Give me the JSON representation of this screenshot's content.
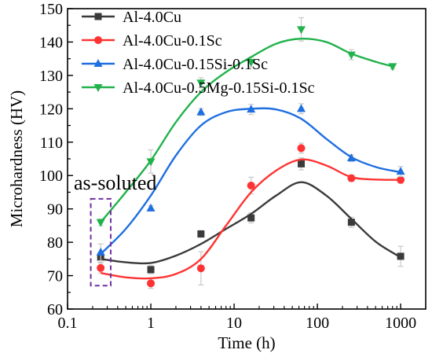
{
  "chart_data": {
    "type": "scatter",
    "xlabel": "Time (h)",
    "ylabel": "Microhardness (HV)",
    "xscale": "log",
    "xlim": [
      0.1,
      2000
    ],
    "ylim": [
      60,
      150
    ],
    "xticks": [
      0.1,
      1,
      10,
      100,
      1000
    ],
    "xtick_labels": [
      "0.1",
      "1",
      "10",
      "100",
      "1000"
    ],
    "yticks": [
      60,
      70,
      80,
      90,
      100,
      110,
      120,
      130,
      140,
      150
    ],
    "ytick_labels": [
      "60",
      "70",
      "80",
      "90",
      "100",
      "110",
      "120",
      "130",
      "140",
      "150"
    ],
    "legend_position": "top-left",
    "grid": false,
    "annotation": {
      "text": "as-soluted",
      "box_x": [
        0.19,
        0.33
      ],
      "box_y": [
        67,
        93
      ],
      "box_color": "#7030a0"
    },
    "series": [
      {
        "name": "Al-4.0Cu",
        "color": "#3a3a3a",
        "marker": "square",
        "points": [
          {
            "x": 0.25,
            "y": 75.5,
            "err": 1.5
          },
          {
            "x": 1,
            "y": 71.8,
            "err": 1.2
          },
          {
            "x": 4,
            "y": 82.5,
            "err": 1.0
          },
          {
            "x": 16,
            "y": 87.3,
            "err": 1.5
          },
          {
            "x": 64,
            "y": 103.5,
            "err": 1.8
          },
          {
            "x": 256,
            "y": 86.0,
            "err": 1.5
          },
          {
            "x": 1000,
            "y": 75.8,
            "err": 3.0
          }
        ],
        "fit": [
          [
            0.25,
            75
          ],
          [
            0.5,
            74
          ],
          [
            1,
            73.8
          ],
          [
            2,
            76
          ],
          [
            4,
            79.5
          ],
          [
            8,
            84
          ],
          [
            16,
            88.5
          ],
          [
            32,
            94
          ],
          [
            64,
            98
          ],
          [
            128,
            94
          ],
          [
            256,
            87
          ],
          [
            512,
            80
          ],
          [
            1000,
            75.5
          ]
        ]
      },
      {
        "name": "Al-4.0Cu-0.1Sc",
        "color": "#ff3333",
        "marker": "circle",
        "points": [
          {
            "x": 0.25,
            "y": 72.3,
            "err": 1.5
          },
          {
            "x": 1,
            "y": 67.7,
            "err": 1.5
          },
          {
            "x": 4,
            "y": 72.2,
            "err": 5.0
          },
          {
            "x": 16,
            "y": 97.0,
            "err": 2.5
          },
          {
            "x": 64,
            "y": 108.2,
            "err": 1.5
          },
          {
            "x": 256,
            "y": 99.2,
            "err": 1.0
          },
          {
            "x": 1000,
            "y": 98.7,
            "err": 1.0
          }
        ],
        "fit": [
          [
            0.25,
            70.8
          ],
          [
            0.5,
            69.5
          ],
          [
            1,
            69.2
          ],
          [
            2,
            70.5
          ],
          [
            4,
            75
          ],
          [
            8,
            85
          ],
          [
            16,
            95
          ],
          [
            32,
            101.5
          ],
          [
            64,
            104.8
          ],
          [
            128,
            103
          ],
          [
            256,
            99.5
          ],
          [
            512,
            98.8
          ],
          [
            1000,
            98.7
          ]
        ]
      },
      {
        "name": "Al-4.0Cu-0.15Si-0.1Sc",
        "color": "#1f6fe0",
        "marker": "triangle-up",
        "points": [
          {
            "x": 0.25,
            "y": 77.0,
            "err": 2.5
          },
          {
            "x": 1,
            "y": 90.2,
            "err": 0.8
          },
          {
            "x": 4,
            "y": 119.0,
            "err": 1.0
          },
          {
            "x": 16,
            "y": 119.8,
            "err": 1.5
          },
          {
            "x": 64,
            "y": 120.0,
            "err": 1.5
          },
          {
            "x": 256,
            "y": 105.2,
            "err": 1.0
          },
          {
            "x": 1000,
            "y": 101.2,
            "err": 1.5
          }
        ],
        "fit": [
          [
            0.25,
            76.5
          ],
          [
            0.5,
            84
          ],
          [
            1,
            94
          ],
          [
            2,
            106
          ],
          [
            4,
            115
          ],
          [
            8,
            119
          ],
          [
            16,
            120
          ],
          [
            32,
            119.8
          ],
          [
            64,
            117
          ],
          [
            128,
            111
          ],
          [
            256,
            105.5
          ],
          [
            512,
            102.5
          ],
          [
            1000,
            101
          ]
        ]
      },
      {
        "name": "Al-4.0Cu-0.5Mg-0.15Si-0.1Sc",
        "color": "#22b24c",
        "marker": "triangle-down",
        "points": [
          {
            "x": 0.25,
            "y": 86.0,
            "err": 1.0
          },
          {
            "x": 1,
            "y": 104.2,
            "err": 3.5
          },
          {
            "x": 4,
            "y": 127.8,
            "err": 1.5
          },
          {
            "x": 16,
            "y": 134.0,
            "err": 1.5
          },
          {
            "x": 64,
            "y": 143.8,
            "err": 3.5
          },
          {
            "x": 256,
            "y": 136.2,
            "err": 1.5
          },
          {
            "x": 800,
            "y": 132.7,
            "err": 0.8
          }
        ],
        "fit": [
          [
            0.25,
            86
          ],
          [
            0.5,
            95
          ],
          [
            1,
            104.5
          ],
          [
            2,
            116
          ],
          [
            4,
            125
          ],
          [
            8,
            131
          ],
          [
            16,
            135.5
          ],
          [
            32,
            139.5
          ],
          [
            64,
            141
          ],
          [
            128,
            140
          ],
          [
            256,
            136.5
          ],
          [
            512,
            134
          ],
          [
            800,
            132.7
          ]
        ]
      }
    ]
  }
}
